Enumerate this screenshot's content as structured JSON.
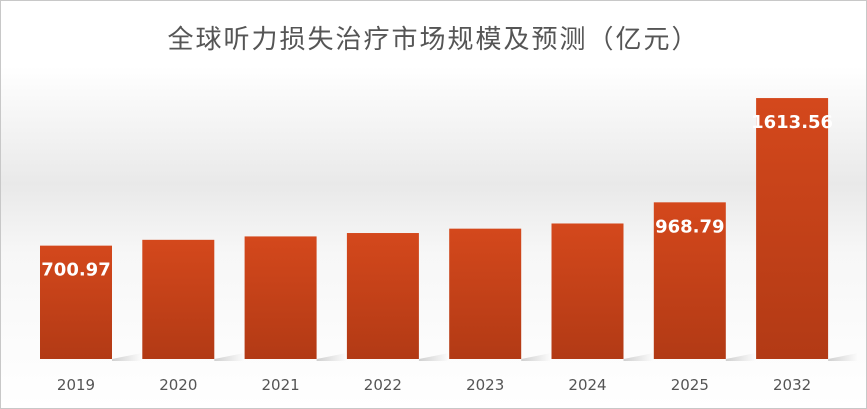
{
  "chart_data": {
    "type": "bar",
    "title": "全球听力损失治疗市场规模及预测（亿元）",
    "categories": [
      "2019",
      "2020",
      "2021",
      "2022",
      "2023",
      "2024",
      "2025",
      "2032"
    ],
    "values": [
      700.97,
      737,
      758,
      779,
      806,
      838,
      968.79,
      1613.56
    ],
    "data_labels": [
      "700.97",
      "",
      "",
      "",
      "",
      "",
      "968.79",
      "1613.56"
    ],
    "ylim": [
      0,
      1750
    ],
    "xlabel": "",
    "ylabel": "",
    "grid": false,
    "legend": "none",
    "bar_color_top": "#d4481c",
    "bar_color_bottom": "#b23a15"
  }
}
